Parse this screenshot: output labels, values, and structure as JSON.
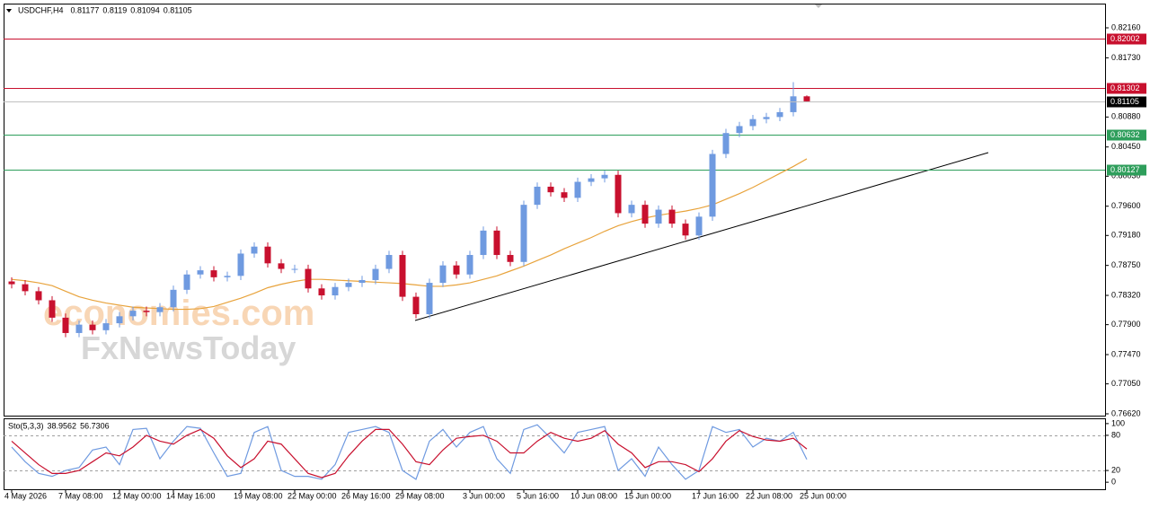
{
  "chart_data": {
    "type": "candlestick",
    "title": "USDCHF,H4",
    "categories": [
      "4 May 2026",
      null,
      null,
      null,
      "7 May 08:00",
      null,
      null,
      null,
      "12 May 00:00",
      null,
      null,
      null,
      "14 May 16:00",
      null,
      null,
      null,
      null,
      "19 May 08:00",
      null,
      null,
      null,
      "22 May 00:00",
      null,
      null,
      null,
      "26 May 16:00",
      null,
      null,
      null,
      "29 May 08:00",
      null,
      null,
      null,
      null,
      "3 Jun 00:00",
      null,
      null,
      null,
      "5 Jun 16:00",
      null,
      null,
      null,
      "10 Jun 08:00",
      null,
      null,
      null,
      "15 Jun 00:00",
      null,
      null,
      null,
      null,
      "17 Jun 16:00",
      null,
      null,
      null,
      "22 Jun 08:00",
      null,
      null,
      null,
      "25 Jun 00:00"
    ],
    "open": [
      0.7852,
      0.7848,
      0.7838,
      0.7825,
      0.78,
      0.7778,
      0.779,
      0.7782,
      0.7792,
      0.7802,
      0.781,
      0.7808,
      0.7815,
      0.784,
      0.7862,
      0.7868,
      0.7858,
      0.786,
      0.7892,
      0.7902,
      0.7878,
      0.787,
      0.787,
      0.7842,
      0.7832,
      0.7844,
      0.785,
      0.7854,
      0.787,
      0.789,
      0.783,
      0.7805,
      0.785,
      0.7875,
      0.7862,
      0.789,
      0.7925,
      0.789,
      0.788,
      0.7962,
      0.7988,
      0.798,
      0.7972,
      0.7995,
      0.8,
      0.8005,
      0.795,
      0.7962,
      0.7935,
      0.7955,
      0.7935,
      0.7918,
      0.7945,
      0.8035,
      0.8065,
      0.8075,
      0.8085,
      0.8088,
      0.8095,
      0.81177
    ],
    "high": [
      0.7858,
      0.7854,
      0.7844,
      0.7831,
      0.7806,
      0.7796,
      0.7796,
      0.7798,
      0.7808,
      0.7816,
      0.7816,
      0.7821,
      0.7846,
      0.7868,
      0.7874,
      0.7874,
      0.7866,
      0.7898,
      0.7908,
      0.7908,
      0.7884,
      0.7876,
      0.7876,
      0.7848,
      0.785,
      0.7856,
      0.786,
      0.7876,
      0.7896,
      0.7896,
      0.7836,
      0.7856,
      0.7881,
      0.7881,
      0.7896,
      0.7931,
      0.7931,
      0.7896,
      0.7968,
      0.7994,
      0.7994,
      0.7986,
      0.8001,
      0.8006,
      0.8011,
      0.8011,
      0.7968,
      0.7968,
      0.7961,
      0.7961,
      0.7941,
      0.7951,
      0.8041,
      0.8071,
      0.8081,
      0.8091,
      0.8094,
      0.8101,
      0.8138,
      0.8119
    ],
    "low": [
      0.7842,
      0.7832,
      0.7819,
      0.7794,
      0.7772,
      0.7772,
      0.7776,
      0.7776,
      0.7786,
      0.7796,
      0.7802,
      0.7802,
      0.7809,
      0.7834,
      0.7856,
      0.7852,
      0.7852,
      0.7854,
      0.7886,
      0.7872,
      0.7864,
      0.7864,
      0.7836,
      0.7826,
      0.7826,
      0.7838,
      0.7844,
      0.7848,
      0.7864,
      0.7824,
      0.7799,
      0.7799,
      0.7844,
      0.7856,
      0.7856,
      0.7884,
      0.7884,
      0.7874,
      0.7874,
      0.7956,
      0.7974,
      0.7966,
      0.7966,
      0.7989,
      0.7994,
      0.7944,
      0.7944,
      0.7929,
      0.7929,
      0.7929,
      0.7912,
      0.7912,
      0.7939,
      0.8029,
      0.8059,
      0.8069,
      0.8079,
      0.8082,
      0.8089,
      0.81094
    ],
    "close": [
      0.7848,
      0.7838,
      0.7825,
      0.78,
      0.7778,
      0.779,
      0.7782,
      0.7792,
      0.7802,
      0.781,
      0.7808,
      0.7815,
      0.784,
      0.7862,
      0.7868,
      0.7858,
      0.786,
      0.7892,
      0.7902,
      0.7878,
      0.787,
      0.787,
      0.7842,
      0.7832,
      0.7844,
      0.785,
      0.7854,
      0.787,
      0.789,
      0.783,
      0.7805,
      0.785,
      0.7875,
      0.7862,
      0.789,
      0.7925,
      0.789,
      0.788,
      0.7962,
      0.7988,
      0.798,
      0.7972,
      0.7995,
      0.8,
      0.8005,
      0.795,
      0.7962,
      0.7935,
      0.7955,
      0.7935,
      0.7918,
      0.7945,
      0.8035,
      0.8065,
      0.8075,
      0.8085,
      0.8088,
      0.8095,
      0.81177,
      0.81105
    ],
    "up_color": "#6f9ae0",
    "down_color": "#c8102e",
    "ylim": [
      0.76594,
      0.82508
    ],
    "yticks": [
      {
        "value": 0.8216,
        "label": "0.82160"
      },
      {
        "value": 0.8173,
        "label": "0.81730"
      },
      {
        "value": 0.8088,
        "label": "0.80880"
      },
      {
        "value": 0.8045,
        "label": "0.80450"
      },
      {
        "value": 0.8003,
        "label": "0.80030"
      },
      {
        "value": 0.796,
        "label": "0.79600"
      },
      {
        "value": 0.7918,
        "label": "0.79180"
      },
      {
        "value": 0.7875,
        "label": "0.78750"
      },
      {
        "value": 0.7832,
        "label": "0.78320"
      },
      {
        "value": 0.779,
        "label": "0.77900"
      },
      {
        "value": 0.7747,
        "label": "0.77470"
      },
      {
        "value": 0.7705,
        "label": "0.77050"
      },
      {
        "value": 0.7662,
        "label": "0.76620"
      }
    ],
    "overlays": [
      {
        "type": "line",
        "color": "#e8a33c",
        "values": [
          0.7855,
          0.7853,
          0.785,
          0.7846,
          0.7838,
          0.783,
          0.7825,
          0.7821,
          0.7818,
          0.7815,
          0.7814,
          0.7813,
          0.7812,
          0.7812,
          0.7813,
          0.7816,
          0.7822,
          0.7828,
          0.7835,
          0.7843,
          0.7848,
          0.7852,
          0.7855,
          0.7855,
          0.7854,
          0.7853,
          0.7852,
          0.7851,
          0.785,
          0.7849,
          0.7847,
          0.7845,
          0.7845,
          0.7847,
          0.785,
          0.7855,
          0.786,
          0.7867,
          0.7874,
          0.7882,
          0.789,
          0.7899,
          0.7907,
          0.7915,
          0.7924,
          0.7932,
          0.7938,
          0.7943,
          0.7947,
          0.795,
          0.7953,
          0.7957,
          0.7962,
          0.797,
          0.7978,
          0.7987,
          0.7997,
          0.8007,
          0.8017,
          0.8028
        ]
      }
    ],
    "levels": [
      {
        "value": 0.82002,
        "color": "#c8102e"
      },
      {
        "value": 0.81302,
        "color": "#c8102e"
      },
      {
        "value": 0.80632,
        "color": "#2e9e5b"
      },
      {
        "value": 0.80127,
        "color": "#2e9e5b"
      }
    ],
    "current_color": "#000000",
    "watermark": [
      "economies.com",
      "FxNewsToday"
    ],
    "indicator": {
      "type": "line",
      "title": "Sto(5,3,3)",
      "series": [
        {
          "color": "#6f9ae0",
          "values": [
            60,
            35,
            15,
            10,
            20,
            25,
            55,
            60,
            30,
            90,
            92,
            40,
            70,
            95,
            92,
            50,
            10,
            15,
            85,
            95,
            20,
            10,
            10,
            5,
            30,
            85,
            90,
            95,
            85,
            20,
            5,
            70,
            90,
            60,
            85,
            95,
            40,
            15,
            90,
            98,
            75,
            50,
            85,
            90,
            95,
            20,
            40,
            10,
            60,
            30,
            5,
            20,
            95,
            85,
            90,
            60,
            75,
            70,
            85,
            38.9562
          ]
        },
        {
          "color": "#c8102e",
          "values": [
            70,
            50,
            30,
            15,
            15,
            20,
            35,
            50,
            45,
            60,
            80,
            70,
            65,
            80,
            90,
            75,
            45,
            25,
            40,
            70,
            65,
            40,
            15,
            8,
            15,
            45,
            70,
            90,
            90,
            65,
            35,
            30,
            55,
            75,
            78,
            80,
            70,
            50,
            50,
            70,
            85,
            75,
            70,
            75,
            88,
            65,
            50,
            25,
            35,
            35,
            30,
            18,
            40,
            70,
            88,
            78,
            72,
            70,
            75,
            56.7306
          ]
        }
      ],
      "ylim": [
        -12,
        109
      ],
      "yticks": [
        100,
        80,
        20,
        0
      ],
      "levels": [
        80,
        20
      ]
    }
  }
}
